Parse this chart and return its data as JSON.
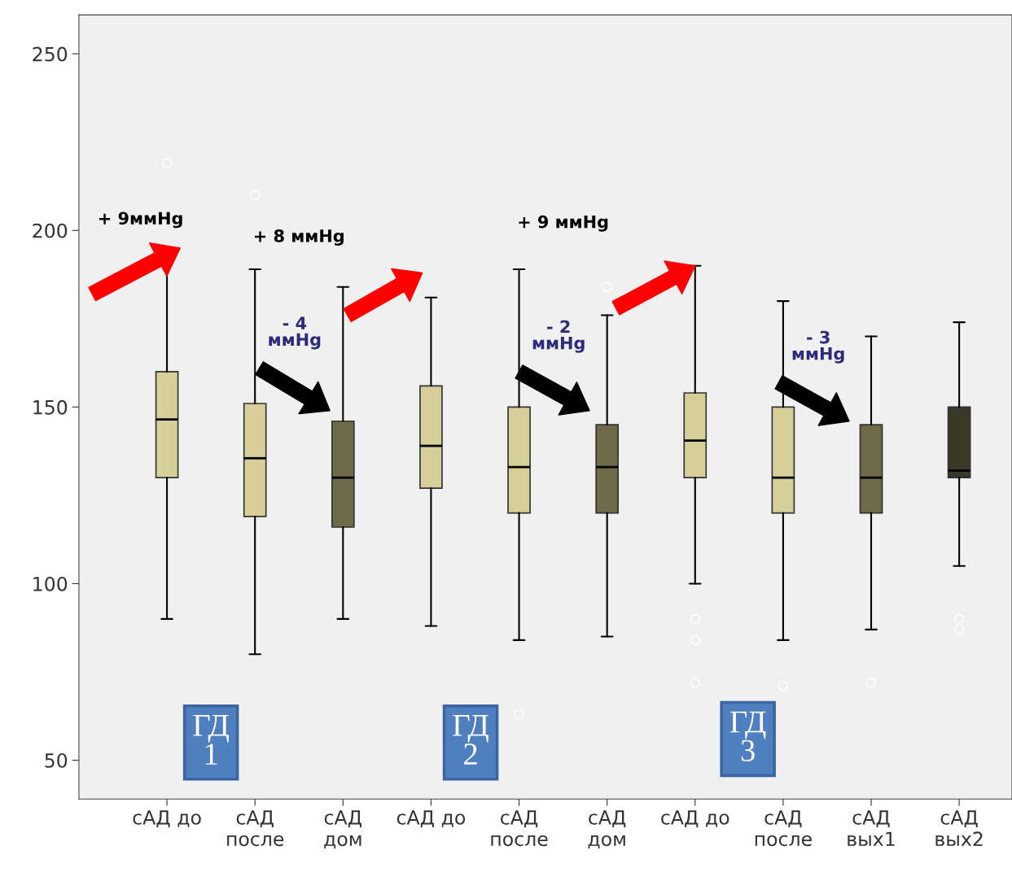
{
  "chart_data": {
    "type": "box",
    "categories": [
      "сАД до",
      "сАД\nпосле",
      "сАД\nдом",
      "сАД до",
      "сАД\nпосле",
      "сАД\nдом",
      "сАД до",
      "сАД\nпосле",
      "сАД\nвых1",
      "сАД\nвых2"
    ],
    "boxes": [
      {
        "low": 90,
        "q1": 130,
        "median": 146.5,
        "q3": 160,
        "high": 192,
        "outliers": [
          219
        ]
      },
      {
        "low": 80,
        "q1": 119,
        "median": 135.5,
        "q3": 151,
        "high": 189,
        "outliers": [
          210
        ]
      },
      {
        "low": 90,
        "q1": 116,
        "median": 130,
        "q3": 146,
        "high": 184
      },
      {
        "low": 88,
        "q1": 127,
        "median": 139,
        "q3": 156,
        "high": 181
      },
      {
        "low": 84,
        "q1": 120,
        "median": 133,
        "q3": 150,
        "high": 189,
        "outliers": [
          63
        ]
      },
      {
        "low": 85,
        "q1": 120,
        "median": 133,
        "q3": 145,
        "high": 176,
        "outliers": [
          184
        ]
      },
      {
        "low": 100,
        "q1": 130,
        "median": 140.5,
        "q3": 154,
        "high": 190,
        "outliers": [
          90,
          84,
          72
        ]
      },
      {
        "low": 84,
        "q1": 120,
        "median": 130,
        "q3": 150,
        "high": 180,
        "outliers": [
          71
        ]
      },
      {
        "low": 87,
        "q1": 120,
        "median": 130,
        "q3": 145,
        "high": 170,
        "outliers": [
          72
        ]
      },
      {
        "low": 105,
        "q1": 130,
        "median": 132,
        "q3": 150,
        "high": 174,
        "outliers": [
          90,
          87
        ]
      }
    ],
    "colors": [
      "#d6cf9a",
      "#d6cf9a",
      "#6e6a48",
      "#d6cf9a",
      "#d6cf9a",
      "#6e6a48",
      "#d6cf9a",
      "#d6cf9a",
      "#6e6a48",
      "#3a3826"
    ],
    "ylim": [
      39,
      261
    ],
    "yticks": [
      50,
      100,
      150,
      200,
      250
    ],
    "annotations": [
      "+ 9ммHg",
      "+ 8 ммHg",
      "+ 9 ммHg",
      "- 4\nммHg",
      "- 2\nммHg",
      "- 3\nммHg",
      "ГД\n1",
      "ГД\n2",
      "ГД\n3"
    ],
    "grid": false
  }
}
